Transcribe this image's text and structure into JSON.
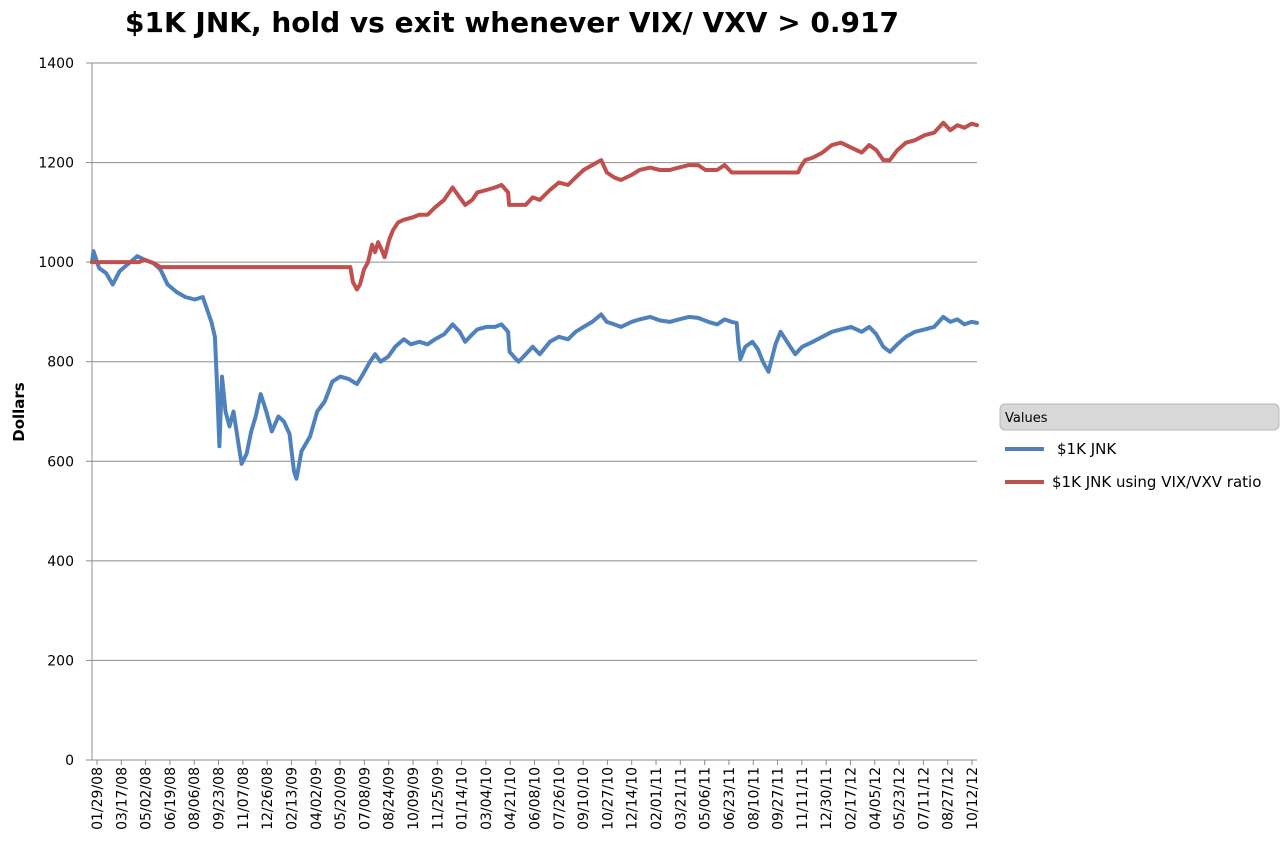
{
  "chart_data": {
    "type": "line",
    "title": "$1K JNK, hold vs exit whenever VIX/ VXV > 0.917",
    "xlabel": "",
    "ylabel": "Dollars",
    "ylim": [
      0,
      1400
    ],
    "yticks": [
      0,
      200,
      400,
      600,
      800,
      1000,
      1200,
      1400
    ],
    "grid": "horizontal",
    "legend_placement": "right",
    "legend_header": "Values",
    "x_tick_labels": [
      "01/29/08",
      "03/17/08",
      "05/02/08",
      "06/19/08",
      "08/06/08",
      "09/23/08",
      "11/07/08",
      "12/26/08",
      "02/13/09",
      "04/02/09",
      "05/20/09",
      "07/08/09",
      "08/24/09",
      "10/09/09",
      "11/25/09",
      "01/14/10",
      "03/04/10",
      "04/21/10",
      "06/08/10",
      "07/26/10",
      "09/10/10",
      "10/27/10",
      "12/14/10",
      "02/01/11",
      "03/21/11",
      "05/06/11",
      "06/23/11",
      "08/10/11",
      "09/27/11",
      "11/11/11",
      "12/30/11",
      "02/17/12",
      "04/05/12",
      "05/23/12",
      "07/11/12",
      "08/27/12",
      "10/12/12"
    ],
    "x_range": [
      "01/29/08",
      "11/20/12"
    ],
    "series": [
      {
        "name": "$1K JNK",
        "color": "#4F81BD",
        "points": [
          [
            "01/29/08",
            1000
          ],
          [
            "02/01/08",
            1022
          ],
          [
            "02/12/08",
            988
          ],
          [
            "02/26/08",
            978
          ],
          [
            "03/10/08",
            955
          ],
          [
            "03/24/08",
            982
          ],
          [
            "04/14/08",
            1000
          ],
          [
            "04/28/08",
            1012
          ],
          [
            "05/12/08",
            1005
          ],
          [
            "05/30/08",
            998
          ],
          [
            "06/13/08",
            985
          ],
          [
            "06/27/08",
            955
          ],
          [
            "07/15/08",
            940
          ],
          [
            "08/01/08",
            930
          ],
          [
            "08/20/08",
            925
          ],
          [
            "09/05/08",
            930
          ],
          [
            "09/15/08",
            900
          ],
          [
            "09/22/08",
            880
          ],
          [
            "09/29/08",
            850
          ],
          [
            "10/03/08",
            760
          ],
          [
            "10/08/08",
            630
          ],
          [
            "10/13/08",
            770
          ],
          [
            "10/20/08",
            700
          ],
          [
            "10/28/08",
            670
          ],
          [
            "11/05/08",
            700
          ],
          [
            "11/14/08",
            640
          ],
          [
            "11/21/08",
            595
          ],
          [
            "12/01/08",
            615
          ],
          [
            "12/10/08",
            660
          ],
          [
            "12/19/08",
            690
          ],
          [
            "12/29/08",
            735
          ],
          [
            "01/09/09",
            700
          ],
          [
            "01/20/09",
            660
          ],
          [
            "02/02/09",
            690
          ],
          [
            "02/13/09",
            680
          ],
          [
            "02/24/09",
            655
          ],
          [
            "03/05/09",
            580
          ],
          [
            "03/10/09",
            565
          ],
          [
            "03/20/09",
            620
          ],
          [
            "04/06/09",
            650
          ],
          [
            "04/20/09",
            700
          ],
          [
            "05/05/09",
            720
          ],
          [
            "05/20/09",
            760
          ],
          [
            "06/05/09",
            770
          ],
          [
            "06/22/09",
            765
          ],
          [
            "07/08/09",
            755
          ],
          [
            "07/20/09",
            775
          ],
          [
            "08/03/09",
            800
          ],
          [
            "08/13/09",
            815
          ],
          [
            "08/24/09",
            800
          ],
          [
            "09/08/09",
            810
          ],
          [
            "09/22/09",
            830
          ],
          [
            "10/09/09",
            845
          ],
          [
            "10/23/09",
            835
          ],
          [
            "11/09/09",
            840
          ],
          [
            "11/25/09",
            835
          ],
          [
            "12/10/09",
            845
          ],
          [
            "12/28/09",
            855
          ],
          [
            "01/14/10",
            875
          ],
          [
            "01/28/10",
            860
          ],
          [
            "02/08/10",
            840
          ],
          [
            "02/22/10",
            855
          ],
          [
            "03/04/10",
            865
          ],
          [
            "03/22/10",
            870
          ],
          [
            "04/08/10",
            870
          ],
          [
            "04/21/10",
            875
          ],
          [
            "05/04/10",
            860
          ],
          [
            "05/07/10",
            820
          ],
          [
            "05/20/10",
            805
          ],
          [
            "05/25/10",
            800
          ],
          [
            "06/08/10",
            815
          ],
          [
            "06/22/10",
            830
          ],
          [
            "07/06/10",
            815
          ],
          [
            "07/26/10",
            840
          ],
          [
            "08/13/10",
            850
          ],
          [
            "08/31/10",
            845
          ],
          [
            "09/15/10",
            860
          ],
          [
            "10/01/10",
            870
          ],
          [
            "10/18/10",
            880
          ],
          [
            "11/05/10",
            895
          ],
          [
            "11/16/10",
            880
          ],
          [
            "12/01/10",
            875
          ],
          [
            "12/14/10",
            870
          ],
          [
            "01/04/11",
            880
          ],
          [
            "01/20/11",
            885
          ],
          [
            "02/10/11",
            890
          ],
          [
            "03/01/11",
            883
          ],
          [
            "03/21/11",
            880
          ],
          [
            "04/08/11",
            885
          ],
          [
            "04/28/11",
            890
          ],
          [
            "05/16/11",
            888
          ],
          [
            "06/06/11",
            880
          ],
          [
            "06/23/11",
            875
          ],
          [
            "07/08/11",
            885
          ],
          [
            "07/22/11",
            880
          ],
          [
            "08/01/11",
            878
          ],
          [
            "08/04/11",
            840
          ],
          [
            "08/08/11",
            805
          ],
          [
            "08/18/11",
            830
          ],
          [
            "09/01/11",
            840
          ],
          [
            "09/12/11",
            825
          ],
          [
            "09/22/11",
            800
          ],
          [
            "10/03/11",
            780
          ],
          [
            "10/17/11",
            835
          ],
          [
            "10/27/11",
            860
          ],
          [
            "11/09/11",
            840
          ],
          [
            "11/25/11",
            815
          ],
          [
            "12/09/11",
            830
          ],
          [
            "12/30/11",
            840
          ],
          [
            "01/18/12",
            850
          ],
          [
            "02/06/12",
            860
          ],
          [
            "02/24/12",
            865
          ],
          [
            "03/15/12",
            870
          ],
          [
            "04/05/12",
            860
          ],
          [
            "04/20/12",
            870
          ],
          [
            "05/04/12",
            855
          ],
          [
            "05/18/12",
            830
          ],
          [
            "05/31/12",
            820
          ],
          [
            "06/15/12",
            835
          ],
          [
            "07/02/12",
            850
          ],
          [
            "07/20/12",
            860
          ],
          [
            "08/08/12",
            865
          ],
          [
            "08/27/12",
            870
          ],
          [
            "09/14/12",
            890
          ],
          [
            "09/28/12",
            880
          ],
          [
            "10/12/12",
            885
          ],
          [
            "10/26/12",
            875
          ],
          [
            "11/09/12",
            880
          ],
          [
            "11/20/12",
            878
          ]
        ]
      },
      {
        "name": "$1K JNK using VIX/VXV ratio",
        "color": "#C0504D",
        "points": [
          [
            "01/29/08",
            1000
          ],
          [
            "03/17/08",
            1000
          ],
          [
            "05/02/08",
            1000
          ],
          [
            "05/12/08",
            1005
          ],
          [
            "05/30/08",
            998
          ],
          [
            "06/13/08",
            990
          ],
          [
            "07/08/08",
            990
          ],
          [
            "08/06/08",
            990
          ],
          [
            "09/23/08",
            990
          ],
          [
            "11/07/08",
            990
          ],
          [
            "12/26/08",
            990
          ],
          [
            "02/13/09",
            990
          ],
          [
            "04/02/09",
            990
          ],
          [
            "05/20/09",
            990
          ],
          [
            "06/25/09",
            990
          ],
          [
            "06/30/09",
            960
          ],
          [
            "07/08/09",
            945
          ],
          [
            "07/14/09",
            955
          ],
          [
            "07/22/09",
            985
          ],
          [
            "07/30/09",
            1000
          ],
          [
            "08/07/09",
            1035
          ],
          [
            "08/13/09",
            1020
          ],
          [
            "08/19/09",
            1040
          ],
          [
            "08/26/09",
            1025
          ],
          [
            "09/01/09",
            1010
          ],
          [
            "09/10/09",
            1045
          ],
          [
            "09/18/09",
            1065
          ],
          [
            "09/28/09",
            1080
          ],
          [
            "10/09/09",
            1085
          ],
          [
            "10/27/09",
            1090
          ],
          [
            "11/09/09",
            1095
          ],
          [
            "11/25/09",
            1095
          ],
          [
            "12/10/09",
            1110
          ],
          [
            "12/28/09",
            1125
          ],
          [
            "01/14/10",
            1150
          ],
          [
            "01/28/10",
            1130
          ],
          [
            "02/08/10",
            1115
          ],
          [
            "02/22/10",
            1125
          ],
          [
            "03/04/10",
            1140
          ],
          [
            "03/22/10",
            1145
          ],
          [
            "04/08/10",
            1150
          ],
          [
            "04/21/10",
            1155
          ],
          [
            "05/04/10",
            1140
          ],
          [
            "05/06/10",
            1115
          ],
          [
            "05/20/10",
            1115
          ],
          [
            "06/08/10",
            1115
          ],
          [
            "06/22/10",
            1130
          ],
          [
            "07/06/10",
            1125
          ],
          [
            "07/26/10",
            1145
          ],
          [
            "08/13/10",
            1160
          ],
          [
            "08/31/10",
            1155
          ],
          [
            "09/15/10",
            1170
          ],
          [
            "10/01/10",
            1185
          ],
          [
            "10/18/10",
            1195
          ],
          [
            "11/05/10",
            1205
          ],
          [
            "11/16/10",
            1180
          ],
          [
            "12/01/10",
            1170
          ],
          [
            "12/14/10",
            1165
          ],
          [
            "01/04/11",
            1175
          ],
          [
            "01/20/11",
            1185
          ],
          [
            "02/10/11",
            1190
          ],
          [
            "03/01/11",
            1185
          ],
          [
            "03/21/11",
            1185
          ],
          [
            "04/08/11",
            1190
          ],
          [
            "04/28/11",
            1195
          ],
          [
            "05/16/11",
            1195
          ],
          [
            "05/31/11",
            1185
          ],
          [
            "06/23/11",
            1185
          ],
          [
            "07/08/11",
            1195
          ],
          [
            "07/22/11",
            1180
          ],
          [
            "08/10/11",
            1180
          ],
          [
            "09/27/11",
            1180
          ],
          [
            "11/11/11",
            1180
          ],
          [
            "12/01/11",
            1180
          ],
          [
            "12/05/11",
            1190
          ],
          [
            "12/15/11",
            1205
          ],
          [
            "12/30/11",
            1210
          ],
          [
            "01/18/12",
            1220
          ],
          [
            "02/06/12",
            1235
          ],
          [
            "02/24/12",
            1240
          ],
          [
            "03/15/12",
            1230
          ],
          [
            "04/05/12",
            1220
          ],
          [
            "04/20/12",
            1235
          ],
          [
            "05/04/12",
            1225
          ],
          [
            "05/18/12",
            1205
          ],
          [
            "05/31/12",
            1205
          ],
          [
            "06/15/12",
            1225
          ],
          [
            "07/02/12",
            1240
          ],
          [
            "07/20/12",
            1245
          ],
          [
            "08/08/12",
            1255
          ],
          [
            "08/27/12",
            1260
          ],
          [
            "09/14/12",
            1280
          ],
          [
            "09/28/12",
            1265
          ],
          [
            "10/12/12",
            1275
          ],
          [
            "10/26/12",
            1270
          ],
          [
            "11/09/12",
            1278
          ],
          [
            "11/20/12",
            1275
          ]
        ]
      }
    ]
  }
}
